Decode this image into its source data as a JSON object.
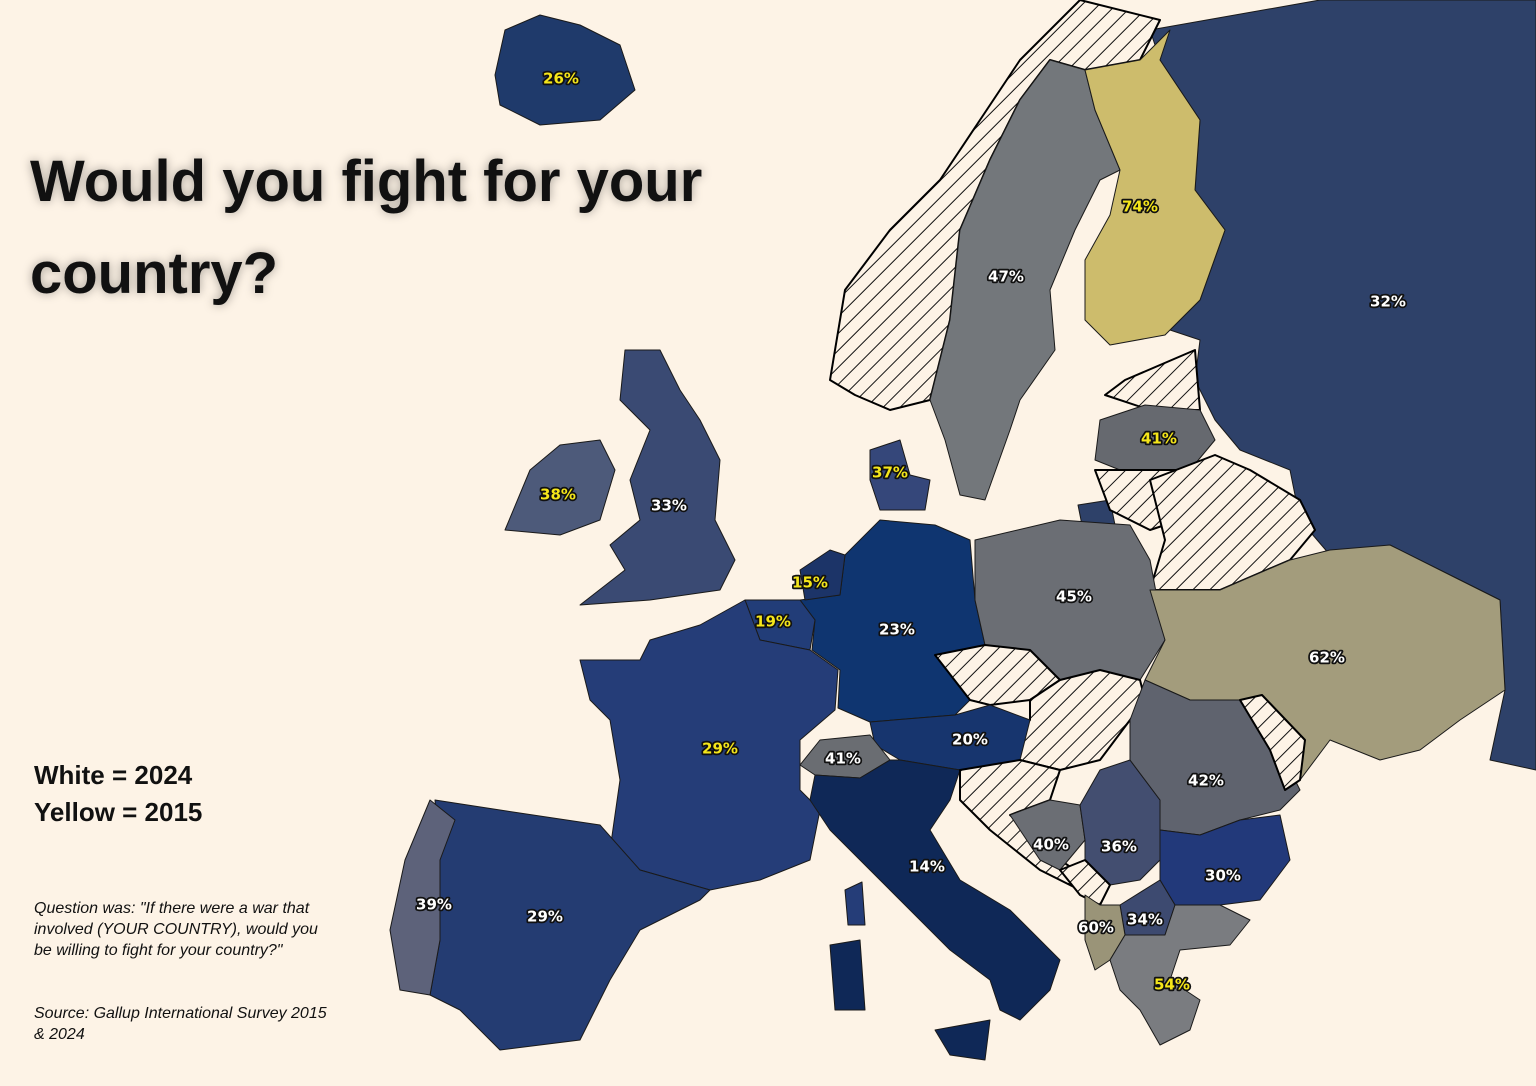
{
  "title": "Would you fight for your country?",
  "legend": [
    "White = 2024",
    "Yellow = 2015"
  ],
  "note": "Question was: \"If there were a war that involved (YOUR COUNTRY), would you be willing to fight for your country?\"",
  "source": "Source: Gallup International Survey 2015 & 2024",
  "labels": [
    {
      "text": "26%",
      "color": "#f5e61a"
    },
    {
      "text": "74%",
      "color": "#f5e61a"
    },
    {
      "text": "47%",
      "color": "#ffffff"
    },
    {
      "text": "32%",
      "color": "#ffffff"
    },
    {
      "text": "41%",
      "color": "#f5e61a"
    },
    {
      "text": "37%",
      "color": "#f5e61a"
    },
    {
      "text": "38%",
      "color": "#f5e61a"
    },
    {
      "text": "33%",
      "color": "#ffffff"
    },
    {
      "text": "15%",
      "color": "#f5e61a"
    },
    {
      "text": "45%",
      "color": "#ffffff"
    },
    {
      "text": "19%",
      "color": "#f5e61a"
    },
    {
      "text": "23%",
      "color": "#ffffff"
    },
    {
      "text": "62%",
      "color": "#ffffff"
    },
    {
      "text": "20%",
      "color": "#ffffff"
    },
    {
      "text": "29%",
      "color": "#f5e61a"
    },
    {
      "text": "41%",
      "color": "#ffffff"
    },
    {
      "text": "42%",
      "color": "#ffffff"
    },
    {
      "text": "40%",
      "color": "#ffffff"
    },
    {
      "text": "36%",
      "color": "#ffffff"
    },
    {
      "text": "14%",
      "color": "#ffffff"
    },
    {
      "text": "30%",
      "color": "#ffffff"
    },
    {
      "text": "39%",
      "color": "#ffffff"
    },
    {
      "text": "29%",
      "color": "#ffffff"
    },
    {
      "text": "60%",
      "color": "#ffffff"
    },
    {
      "text": "34%",
      "color": "#ffffff"
    },
    {
      "text": "54%",
      "color": "#f5e61a"
    }
  ]
}
